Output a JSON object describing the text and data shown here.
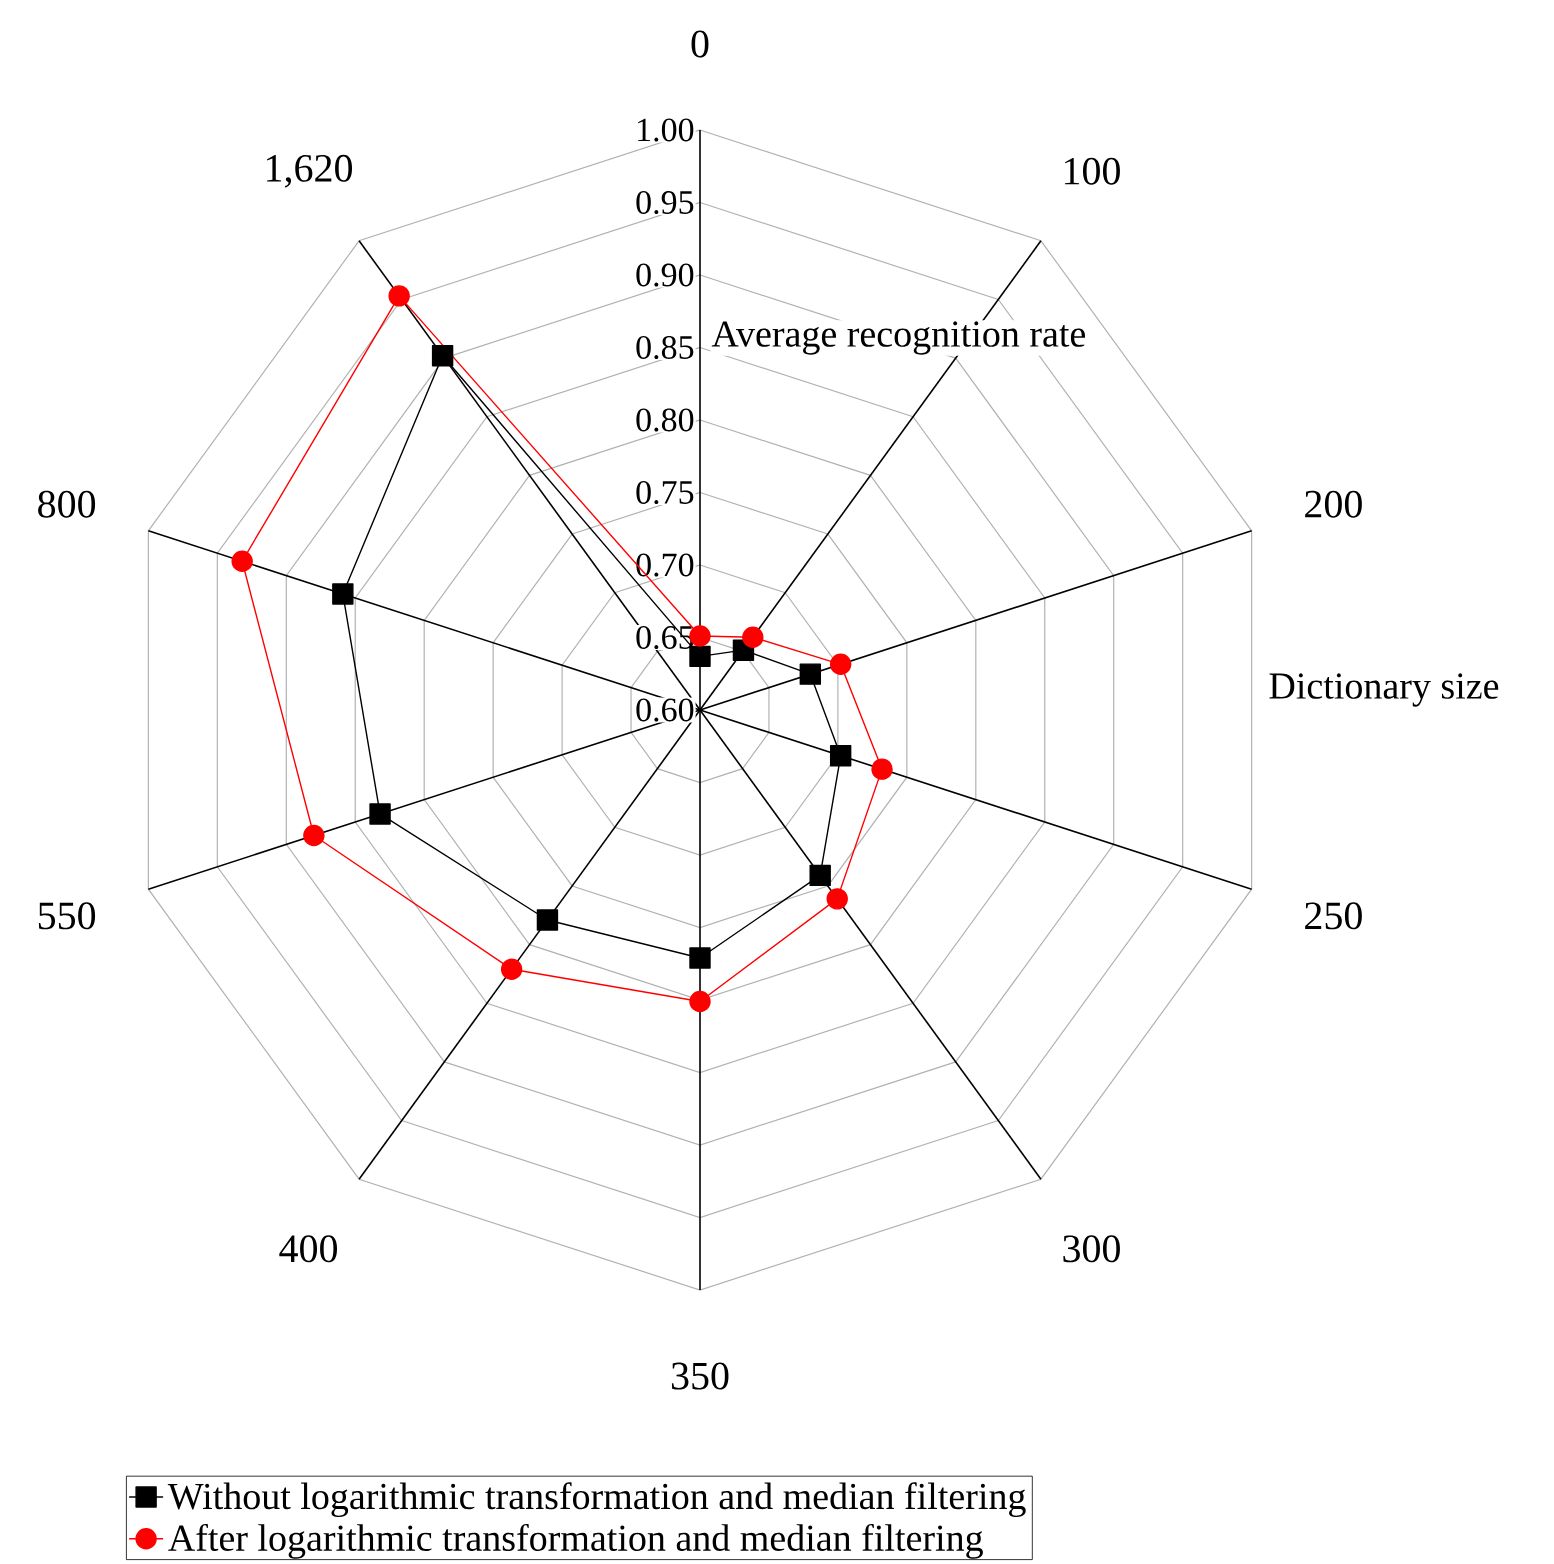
{
  "chart_data": {
    "type": "radar",
    "xlabel": "Dictionary size",
    "ylabel": "Average recognition rate",
    "categories": [
      "0",
      "100",
      "200",
      "250",
      "300",
      "350",
      "400",
      "550",
      "800",
      "1,620"
    ],
    "ylim": [
      0.6,
      1.0
    ],
    "yticks": [
      {
        "value": 0.6,
        "label": "0.60"
      },
      {
        "value": 0.65,
        "label": "0.65"
      },
      {
        "value": 0.7,
        "label": "0.70"
      },
      {
        "value": 0.75,
        "label": "0.75"
      },
      {
        "value": 0.8,
        "label": "0.80"
      },
      {
        "value": 0.85,
        "label": "0.85"
      },
      {
        "value": 0.9,
        "label": "0.90"
      },
      {
        "value": 0.95,
        "label": "0.95"
      },
      {
        "value": 1.0,
        "label": "1.00"
      }
    ],
    "grid": true,
    "legend": "bottom",
    "series": [
      {
        "name": "Without logarithmic transformation and median filtering",
        "color": "#000000",
        "marker": "square",
        "values": [
          0.637,
          0.651,
          0.68,
          0.702,
          0.741,
          0.771,
          0.779,
          0.832,
          0.859,
          0.902
        ]
      },
      {
        "name": "After logarithmic transformation and median filtering",
        "color": "#ff0000",
        "marker": "circle",
        "values": [
          0.651,
          0.662,
          0.702,
          0.732,
          0.761,
          0.801,
          0.821,
          0.88,
          0.932,
          0.953
        ]
      }
    ]
  }
}
